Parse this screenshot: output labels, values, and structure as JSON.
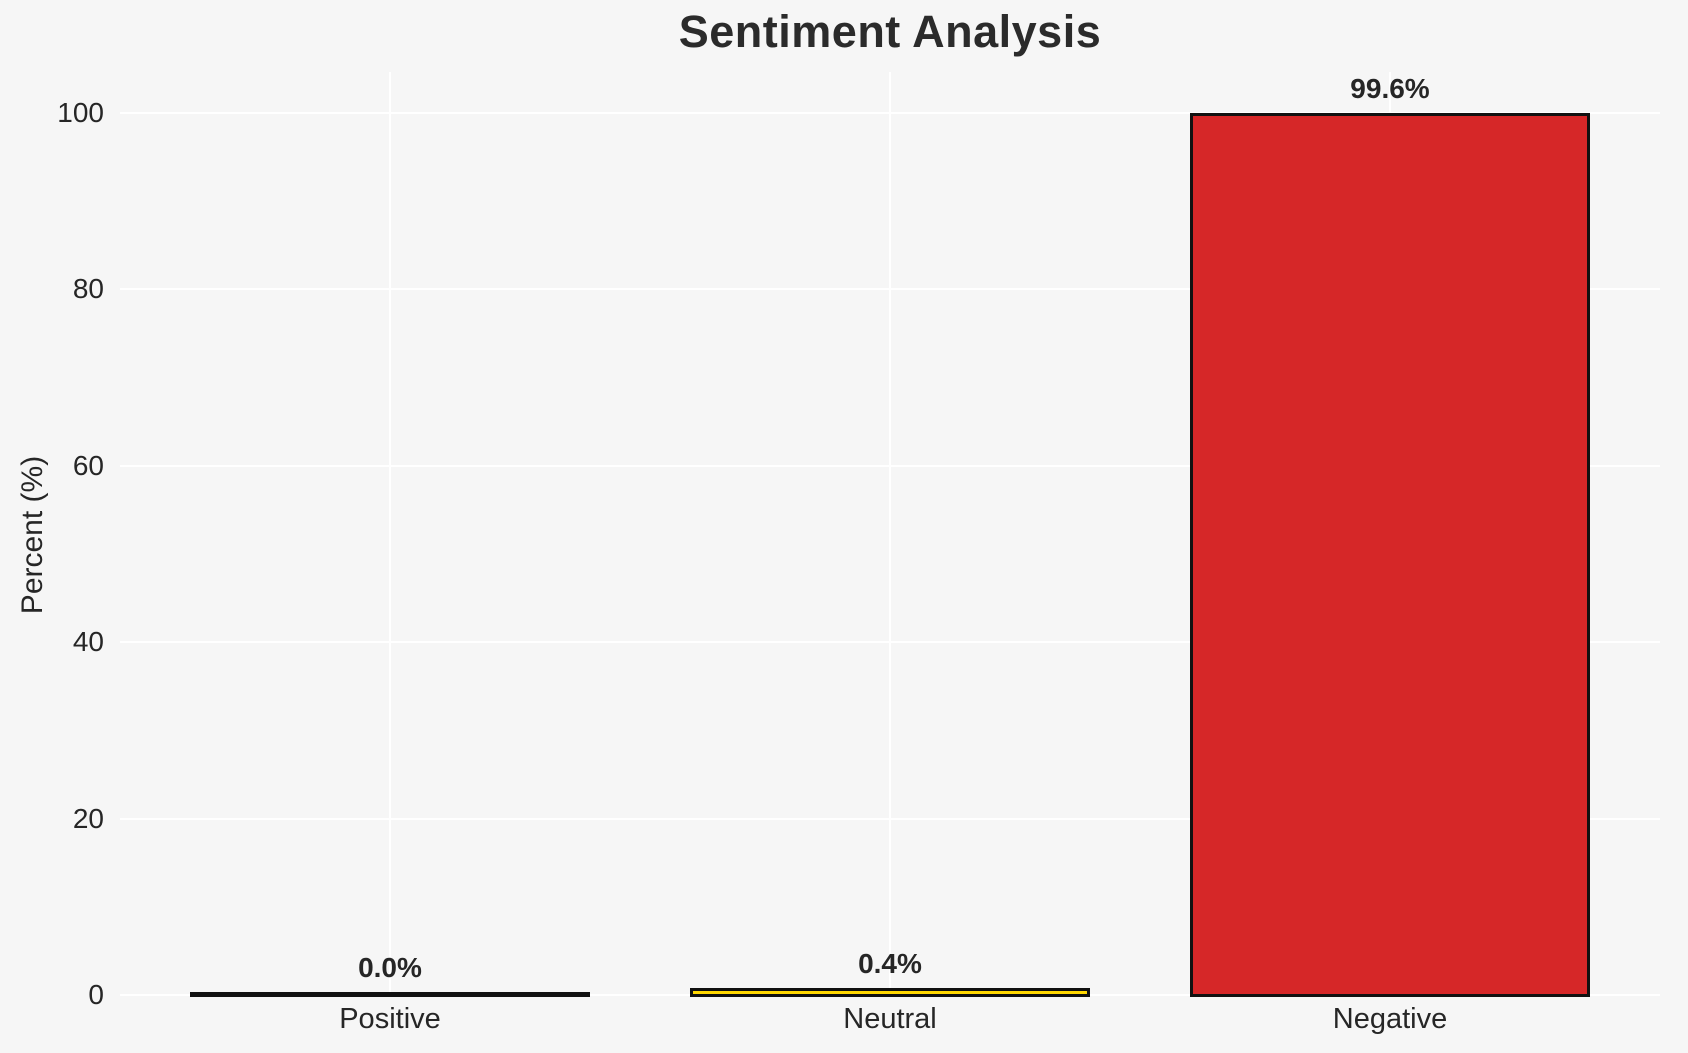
{
  "figure": {
    "background_color": "#f6f6f6",
    "gridline_color": "#ffffff",
    "text_color": "#262626",
    "title_color": "#2b2b2b"
  },
  "chart_data": {
    "type": "bar",
    "title": "Sentiment Analysis",
    "xlabel": "",
    "ylabel": "Percent (%)",
    "categories": [
      "Positive",
      "Neutral",
      "Negative"
    ],
    "values": [
      0.0,
      0.4,
      99.6
    ],
    "value_labels": [
      "0.0%",
      "0.4%",
      "99.6%"
    ],
    "bar_colors": [
      null,
      "#ffd700",
      "#d62728"
    ],
    "bar_edge_color": "#111111",
    "bar_edge_width": 3,
    "bar_width_fraction": 0.8,
    "ylim": [
      0,
      104.6
    ],
    "xlim": [
      -0.54,
      2.54
    ],
    "y_ticks": [
      0,
      20,
      40,
      60,
      80,
      100
    ],
    "grid": "on, white horizontal lines at y ticks and vertical lines at category centers",
    "legend": "none"
  }
}
